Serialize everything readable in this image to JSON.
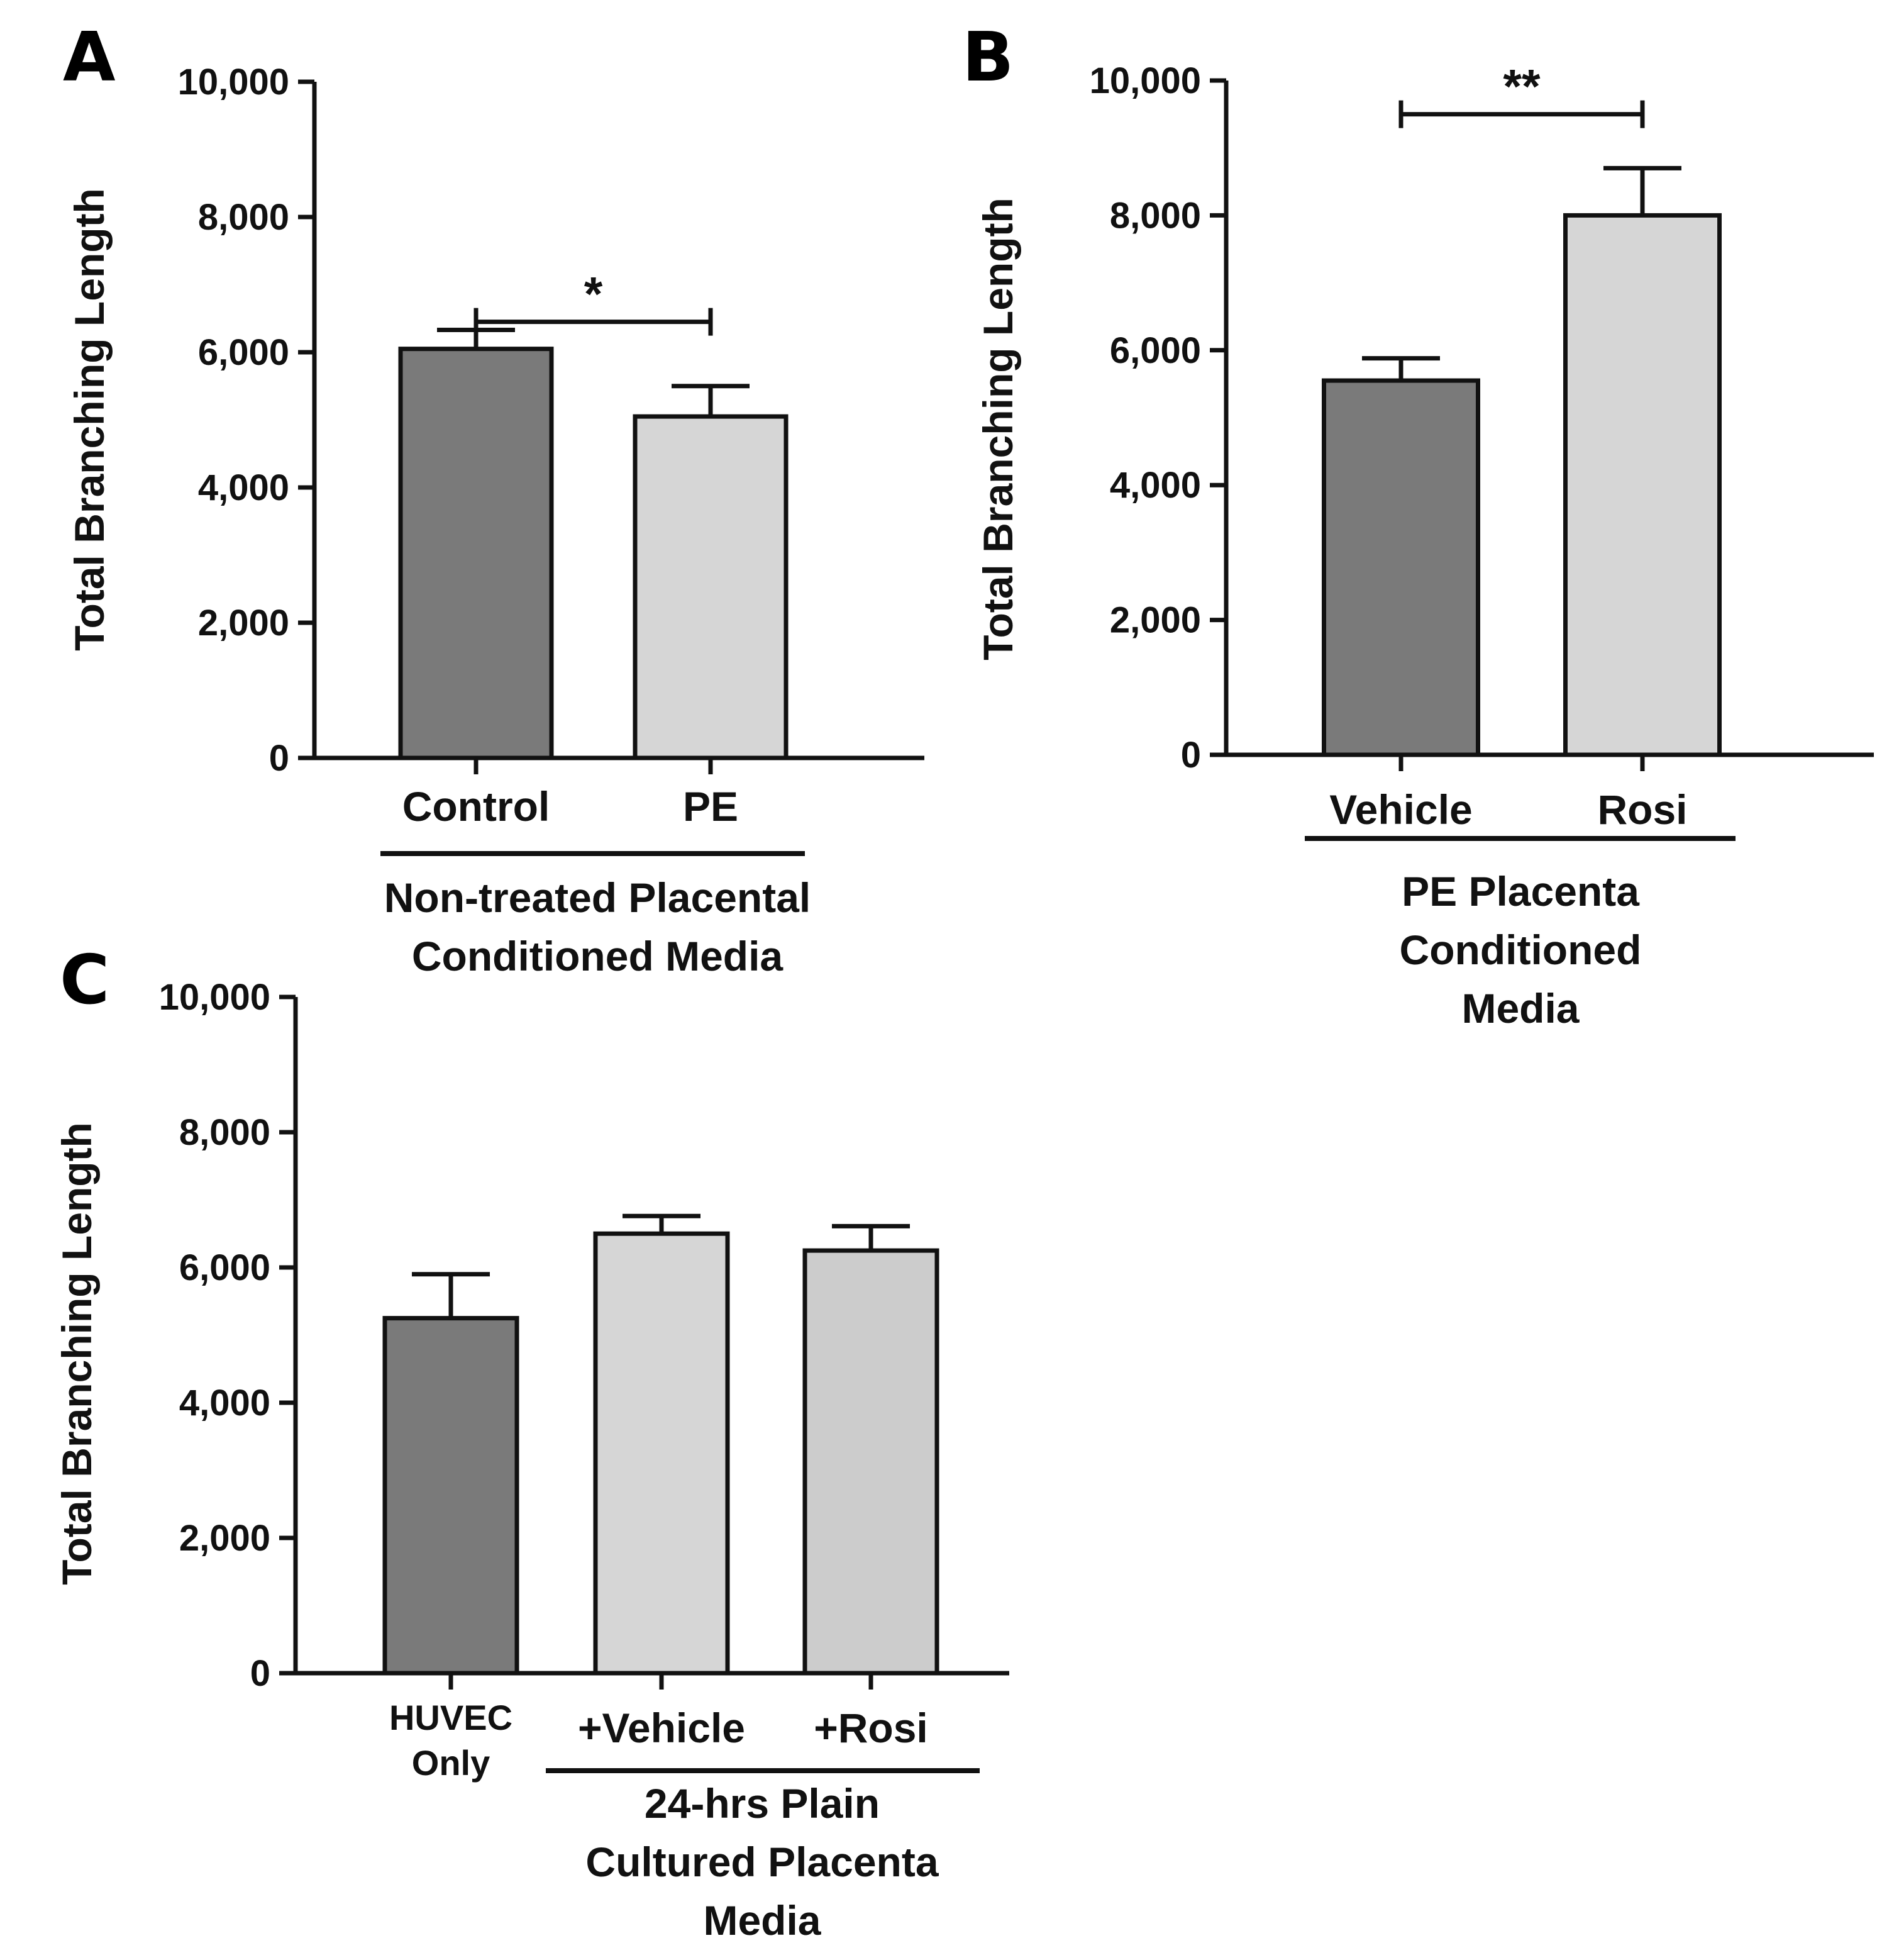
{
  "figure": {
    "panels": [
      "A",
      "B",
      "C"
    ]
  },
  "colors": {
    "dark_bar": "#7a7a7a",
    "light_bar": "#d6d6d6",
    "light_bar_alt": "#cccccc",
    "ink": "#111111"
  },
  "chart_data": [
    {
      "panel": "A",
      "type": "bar",
      "ylabel": "Total Branching Length",
      "ylim": [
        0,
        10000
      ],
      "yticks": [
        "0",
        "2,000",
        "4,000",
        "6,000",
        "8,000",
        "10,000"
      ],
      "categories": [
        "Control",
        "PE"
      ],
      "values": [
        6050,
        5050
      ],
      "errors": [
        280,
        450
      ],
      "group_label_lines": [
        "Non-treated Placental",
        "Conditioned Media"
      ],
      "significance": [
        {
          "from": 0,
          "to": 1,
          "label": "*",
          "y": 6450
        }
      ]
    },
    {
      "panel": "B",
      "type": "bar",
      "ylabel": "Total Branching Length",
      "ylim": [
        0,
        10000
      ],
      "yticks": [
        "0",
        "2,000",
        "4,000",
        "6,000",
        "8,000",
        "10,000"
      ],
      "categories": [
        "Vehicle",
        "Rosi"
      ],
      "values": [
        5550,
        8000
      ],
      "errors": [
        330,
        700
      ],
      "group_label_lines": [
        "PE Placenta",
        "Conditioned",
        "Media"
      ],
      "significance": [
        {
          "from": 0,
          "to": 1,
          "label": "**",
          "y": 9500
        }
      ]
    },
    {
      "panel": "C",
      "type": "bar",
      "ylabel": "Total Branching Length",
      "ylim": [
        0,
        10000
      ],
      "yticks": [
        "0",
        "2,000",
        "4,000",
        "6,000",
        "8,000",
        "10,000"
      ],
      "categories": [
        "HUVEC Only",
        "+Vehicle",
        "+Rosi"
      ],
      "category_label_lines": [
        [
          "HUVEC",
          "Only"
        ],
        [
          "+Vehicle"
        ],
        [
          "+Rosi"
        ]
      ],
      "values": [
        5250,
        6500,
        6250
      ],
      "errors": [
        650,
        260,
        360
      ],
      "group_label_lines": [
        "24-hrs Plain",
        "Cultured Placenta",
        "Media"
      ],
      "significance": []
    }
  ]
}
